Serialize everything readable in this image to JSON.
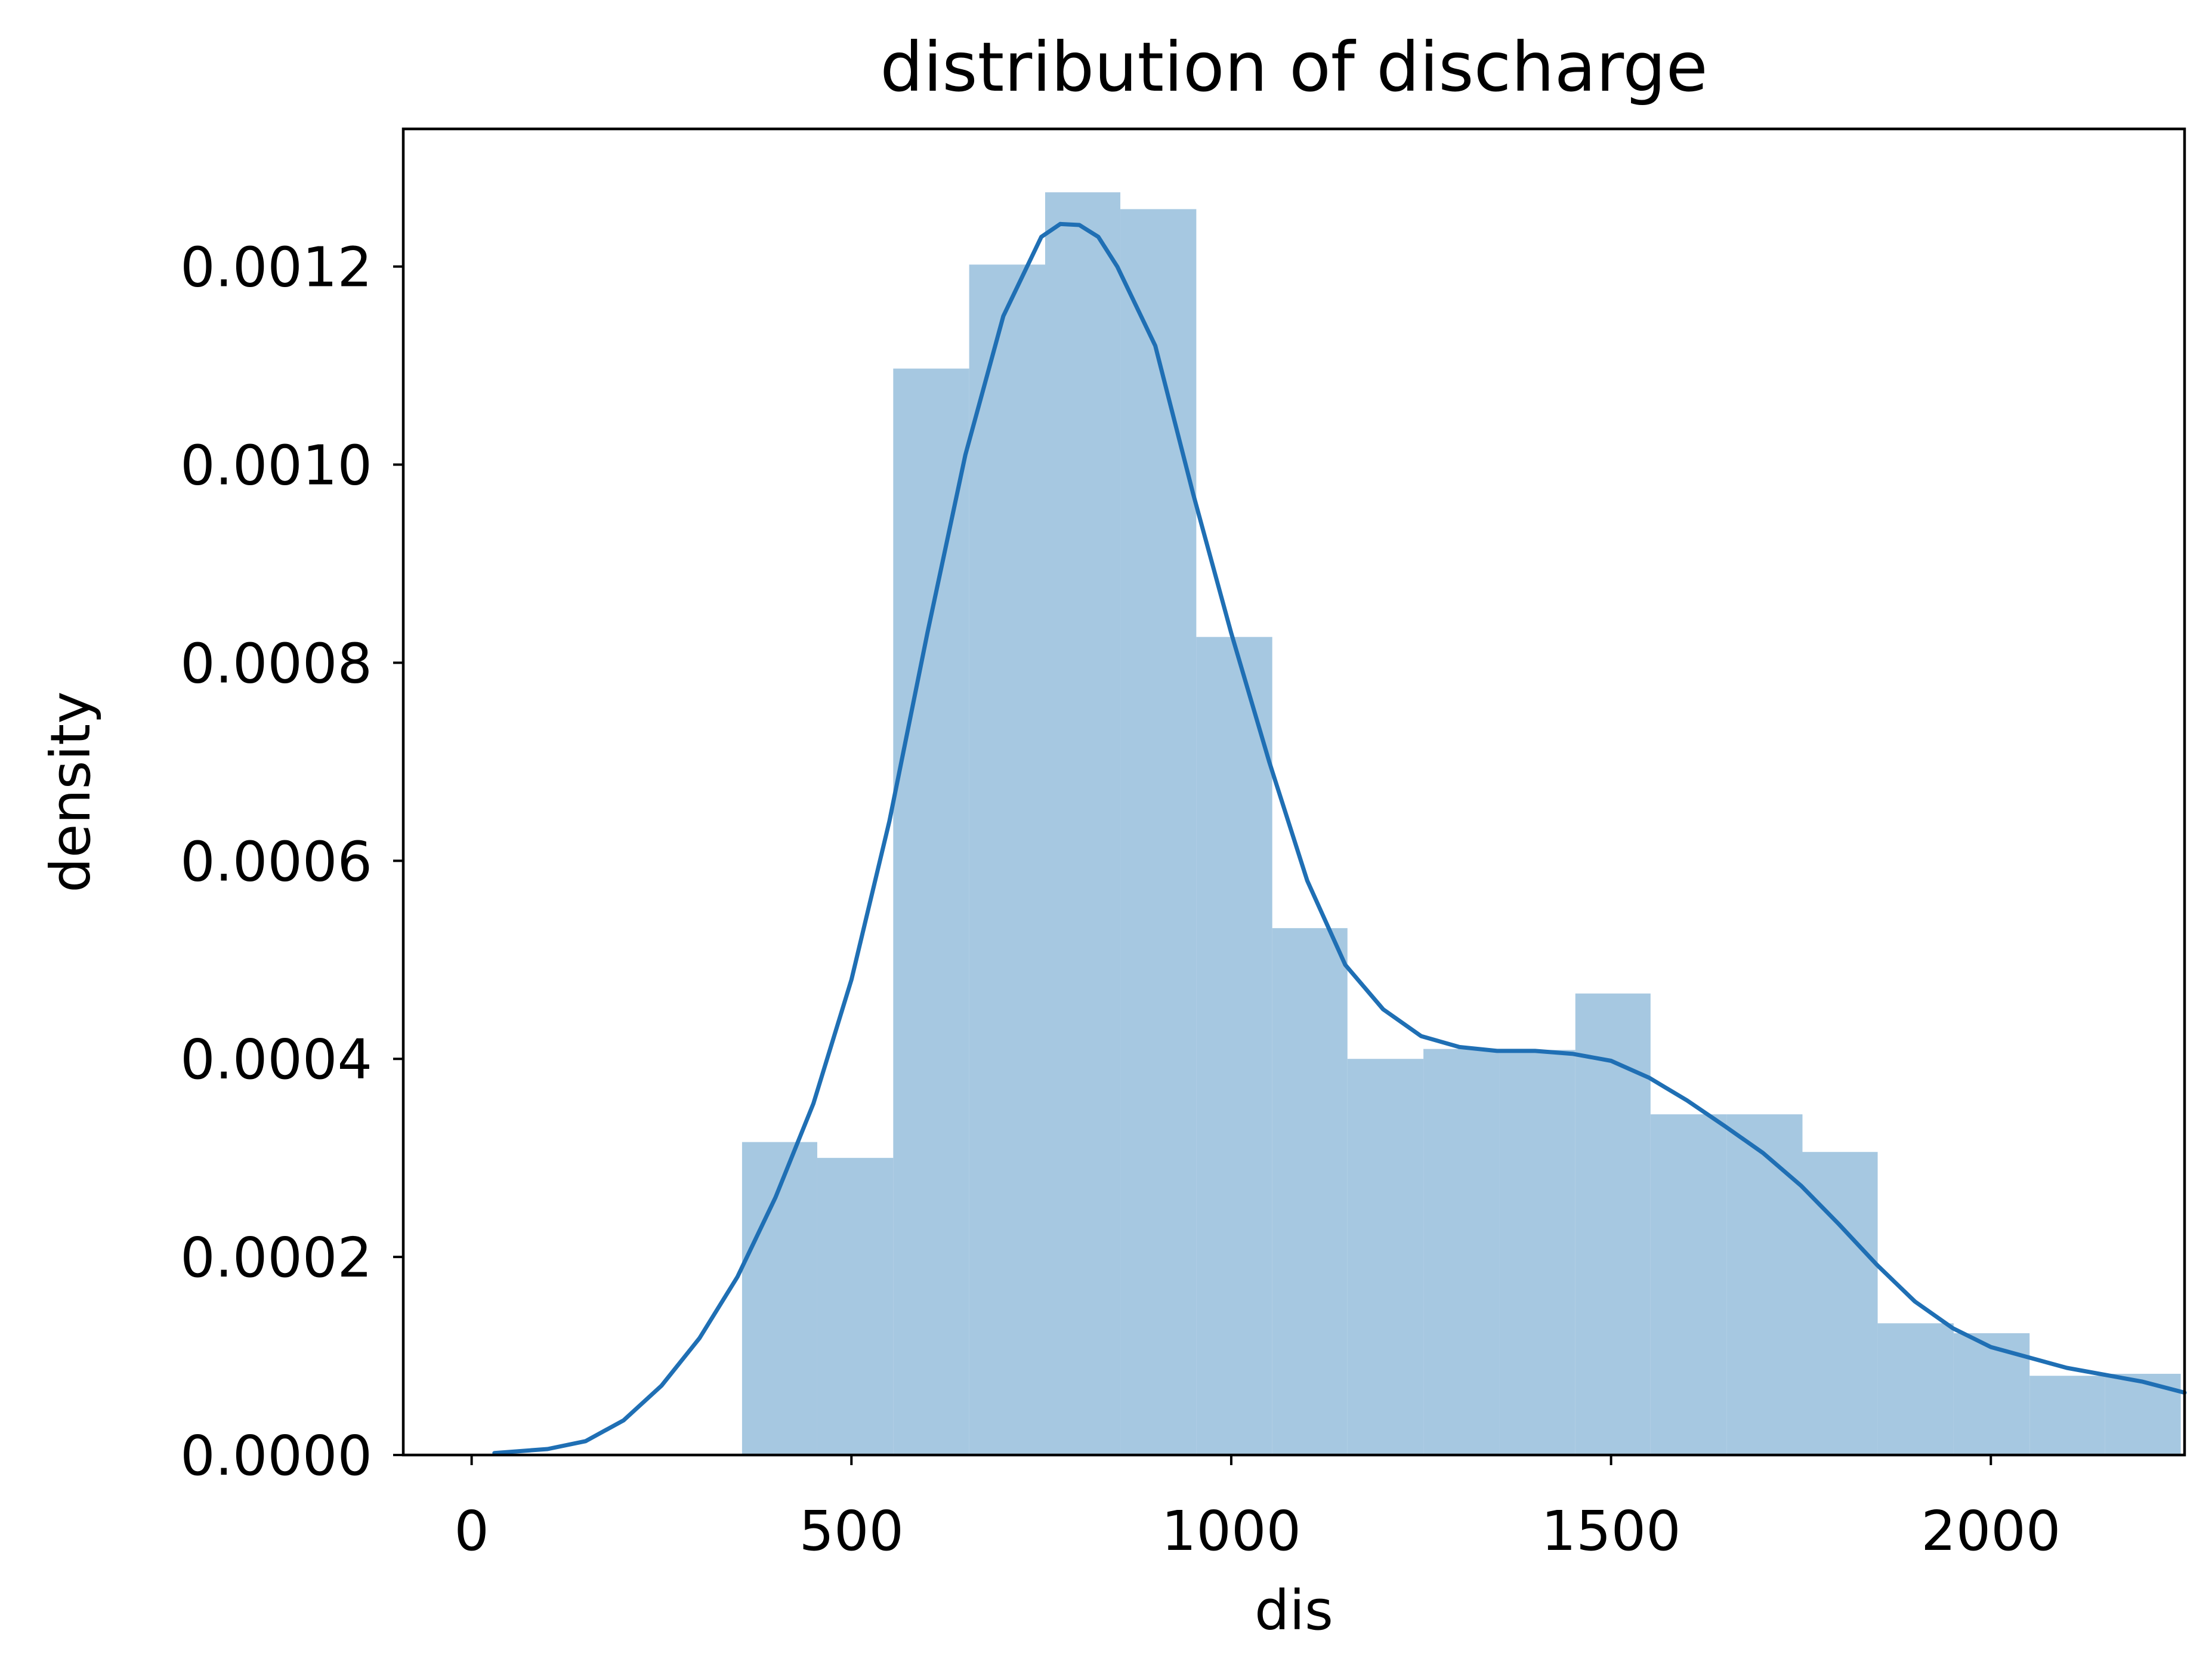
{
  "chart_data": {
    "type": "histogram",
    "title": "distribution of discharge",
    "xlabel": "dis",
    "ylabel": "density",
    "xlim": [
      -90,
      2255
    ],
    "ylim": [
      0,
      0.001339
    ],
    "x_ticks": [
      0,
      500,
      1000,
      1500,
      2000
    ],
    "x_tick_labels": [
      "0",
      "500",
      "1000",
      "1500",
      "2000"
    ],
    "y_ticks": [
      0,
      0.0002,
      0.0004,
      0.0006,
      0.0008,
      0.001,
      0.0012
    ],
    "y_tick_labels": [
      "0.0000",
      "0.0002",
      "0.0004",
      "0.0006",
      "0.0008",
      "0.0010",
      "0.0012"
    ],
    "grid": false,
    "colors": {
      "bars": "#a6c8e1",
      "kde": "#1f6fb4",
      "axes": "#000000"
    },
    "bins": [
      {
        "x0": 356,
        "x1": 455,
        "density": 0.000316
      },
      {
        "x0": 455,
        "x1": 555,
        "density": 0.0003
      },
      {
        "x0": 555,
        "x1": 655,
        "density": 0.001097
      },
      {
        "x0": 655,
        "x1": 755,
        "density": 0.001202
      },
      {
        "x0": 755,
        "x1": 854,
        "density": 0.001275
      },
      {
        "x0": 854,
        "x1": 954,
        "density": 0.001258
      },
      {
        "x0": 954,
        "x1": 1054,
        "density": 0.000826
      },
      {
        "x0": 1054,
        "x1": 1153,
        "density": 0.000532
      },
      {
        "x0": 1153,
        "x1": 1253,
        "density": 0.0004
      },
      {
        "x0": 1253,
        "x1": 1353,
        "density": 0.00041
      },
      {
        "x0": 1353,
        "x1": 1453,
        "density": 0.000409
      },
      {
        "x0": 1453,
        "x1": 1552,
        "density": 0.000466
      },
      {
        "x0": 1552,
        "x1": 1652,
        "density": 0.000344
      },
      {
        "x0": 1652,
        "x1": 1752,
        "density": 0.000344
      },
      {
        "x0": 1752,
        "x1": 1851,
        "density": 0.000306
      },
      {
        "x0": 1851,
        "x1": 1951,
        "density": 0.000133
      },
      {
        "x0": 1951,
        "x1": 2051,
        "density": 0.000123
      },
      {
        "x0": 2051,
        "x1": 2150,
        "density": 8e-05
      },
      {
        "x0": 2150,
        "x1": 2250,
        "density": 8.2e-05
      }
    ],
    "kde": {
      "x": [
        30,
        100,
        150,
        200,
        250,
        300,
        350,
        400,
        450,
        500,
        550,
        600,
        650,
        700,
        750,
        775,
        800,
        825,
        850,
        900,
        950,
        1000,
        1050,
        1100,
        1150,
        1200,
        1250,
        1300,
        1350,
        1400,
        1450,
        1500,
        1550,
        1600,
        1650,
        1700,
        1750,
        1800,
        1850,
        1900,
        1950,
        2000,
        2100,
        2200,
        2255
      ],
      "y": [
        2e-06,
        6e-06,
        1.4e-05,
        3.5e-05,
        7e-05,
        0.000118,
        0.00018,
        0.00026,
        0.000355,
        0.00048,
        0.00064,
        0.00083,
        0.00101,
        0.00115,
        0.00123,
        0.001243,
        0.001242,
        0.00123,
        0.0012,
        0.00112,
        0.00097,
        0.00083,
        0.0007,
        0.00058,
        0.000495,
        0.00045,
        0.000423,
        0.000412,
        0.000408,
        0.000408,
        0.000405,
        0.000398,
        0.000381,
        0.000358,
        0.000332,
        0.000305,
        0.000272,
        0.000233,
        0.000192,
        0.000155,
        0.000128,
        0.000109,
        8.8e-05,
        7.4e-05,
        6.3e-05
      ]
    }
  }
}
